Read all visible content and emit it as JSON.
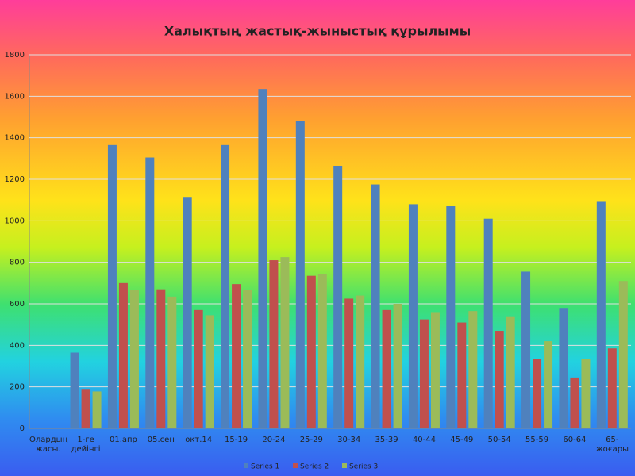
{
  "chart_data": {
    "type": "bar",
    "title": "Халықтың жастық-жыныстық құрылымы",
    "categories": [
      "Олардың жасы.",
      "1-ге дейінгі",
      "01.апр",
      "05.сен",
      "окт.14",
      "15-19",
      "20-24",
      "25-29",
      "30-34",
      "35-39",
      "40-44",
      "45-49",
      "50-54",
      "55-59",
      "60-64",
      "65-жоғары"
    ],
    "series": [
      {
        "name": "Series 1",
        "color": "#4f81bd",
        "values": [
          null,
          365,
          1365,
          1305,
          1115,
          1365,
          1635,
          1480,
          1265,
          1175,
          1080,
          1070,
          1010,
          755,
          580,
          1095
        ]
      },
      {
        "name": "Series 2",
        "color": "#c0504d",
        "values": [
          null,
          190,
          700,
          670,
          570,
          695,
          810,
          735,
          625,
          570,
          525,
          510,
          470,
          335,
          245,
          385
        ]
      },
      {
        "name": "Series 3",
        "color": "#9bbb59",
        "values": [
          null,
          178,
          665,
          635,
          545,
          665,
          825,
          745,
          640,
          600,
          560,
          565,
          540,
          420,
          335,
          710
        ]
      }
    ],
    "ylim": [
      0,
      1800
    ],
    "yticks": [
      0,
      200,
      400,
      600,
      800,
      1000,
      1200,
      1400,
      1600,
      1800
    ],
    "grid": true,
    "legend": "bottom"
  }
}
